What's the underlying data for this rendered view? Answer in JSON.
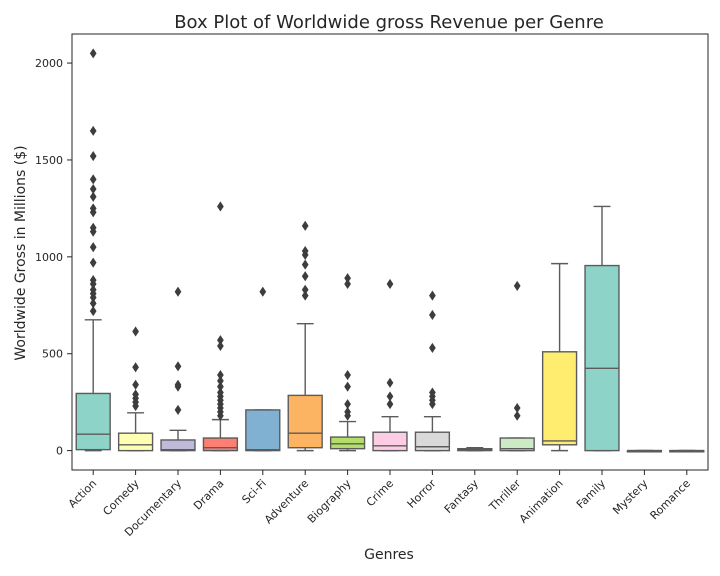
{
  "chart_data": {
    "type": "box",
    "title": "Box Plot of Worldwide gross Revenue per Genre",
    "xlabel": "Genres",
    "ylabel": "Worldwide Gross in Millions ($)",
    "ylim": [
      -100,
      2150
    ],
    "yticks": [
      0,
      500,
      1000,
      1500,
      2000
    ],
    "grid": false,
    "categories": [
      "Action",
      "Comedy",
      "Documentary",
      "Drama",
      "Sci-Fi",
      "Adventure",
      "Biography",
      "Crime",
      "Horror",
      "Fantasy",
      "Thriller",
      "Animation",
      "Family",
      "Mystery",
      "Romance"
    ],
    "colors": [
      "#8dd3c7",
      "#ffffb3",
      "#bebada",
      "#fb8072",
      "#80b1d3",
      "#fdb462",
      "#b3de69",
      "#fccde5",
      "#d9d9d9",
      "#bc80bd",
      "#ccebc5",
      "#ffed6f",
      "#8dd3c7",
      "#ffffb3",
      "#bebada"
    ],
    "boxes": [
      {
        "q1": 5,
        "median": 85,
        "q3": 295,
        "whislo": 0,
        "whishi": 675,
        "fliers": [
          720,
          760,
          790,
          810,
          830,
          860,
          880,
          970,
          1050,
          1130,
          1150,
          1230,
          1250,
          1310,
          1350,
          1400,
          1520,
          1650,
          2050
        ]
      },
      {
        "q1": 0,
        "median": 30,
        "q3": 90,
        "whislo": 0,
        "whishi": 195,
        "fliers": [
          230,
          250,
          270,
          290,
          340,
          430,
          615
        ]
      },
      {
        "q1": 0,
        "median": 5,
        "q3": 55,
        "whislo": 0,
        "whishi": 105,
        "fliers": [
          210,
          330,
          340,
          435,
          820
        ]
      },
      {
        "q1": 0,
        "median": 15,
        "q3": 65,
        "whislo": 0,
        "whishi": 160,
        "fliers": [
          180,
          200,
          220,
          240,
          260,
          280,
          300,
          330,
          360,
          390,
          540,
          570,
          1260
        ]
      },
      {
        "q1": 0,
        "median": 5,
        "q3": 210,
        "whislo": 0,
        "whishi": 210,
        "fliers": [
          820
        ]
      },
      {
        "q1": 15,
        "median": 90,
        "q3": 285,
        "whislo": 0,
        "whishi": 655,
        "fliers": [
          800,
          830,
          900,
          960,
          1010,
          1030,
          1160
        ]
      },
      {
        "q1": 10,
        "median": 35,
        "q3": 70,
        "whislo": 0,
        "whishi": 150,
        "fliers": [
          180,
          200,
          240,
          330,
          390,
          860,
          890
        ]
      },
      {
        "q1": 0,
        "median": 25,
        "q3": 95,
        "whislo": 0,
        "whishi": 175,
        "fliers": [
          240,
          280,
          350,
          860
        ]
      },
      {
        "q1": 0,
        "median": 20,
        "q3": 95,
        "whislo": 0,
        "whishi": 175,
        "fliers": [
          240,
          260,
          280,
          300,
          530,
          700,
          800
        ]
      },
      {
        "q1": 0,
        "median": 5,
        "q3": 10,
        "whislo": 0,
        "whishi": 15,
        "fliers": []
      },
      {
        "q1": 0,
        "median": 10,
        "q3": 65,
        "whislo": 0,
        "whishi": 65,
        "fliers": [
          180,
          220,
          850
        ]
      },
      {
        "q1": 30,
        "median": 50,
        "q3": 510,
        "whislo": 0,
        "whishi": 965,
        "fliers": []
      },
      {
        "q1": 0,
        "median": 425,
        "q3": 955,
        "whislo": 0,
        "whishi": 1260,
        "fliers": []
      },
      {
        "q1": 0,
        "median": 0,
        "q3": 0,
        "whislo": 0,
        "whishi": 0,
        "fliers": []
      },
      {
        "q1": 0,
        "median": 0,
        "q3": 0,
        "whislo": 0,
        "whishi": 0,
        "fliers": []
      }
    ]
  }
}
